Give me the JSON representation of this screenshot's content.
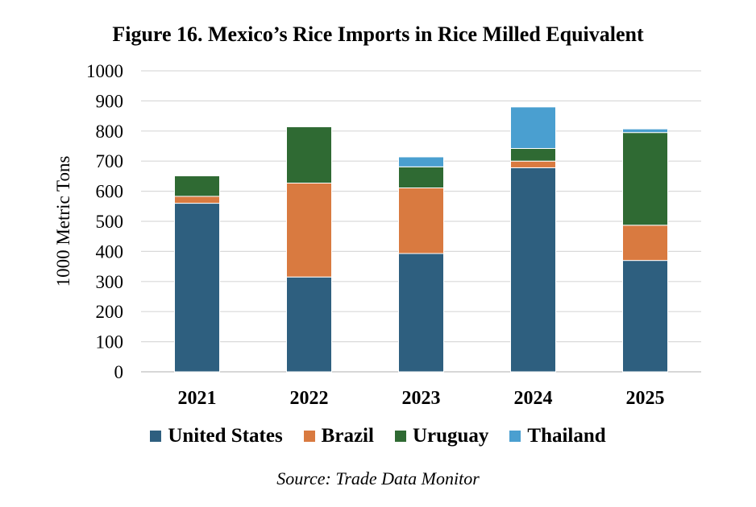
{
  "chart_data": {
    "type": "bar",
    "stacked": true,
    "title": "Figure 16. Mexico’s Rice Imports in Rice Milled Equivalent",
    "xlabel": "",
    "ylabel": "1000 Metric Tons",
    "ylim": [
      0,
      1000
    ],
    "yticks": [
      "0",
      "100",
      "200",
      "300",
      "400",
      "500",
      "600",
      "700",
      "800",
      "900",
      "1000"
    ],
    "grid": true,
    "legend_position": "bottom",
    "categories": [
      "2021",
      "2022",
      "2023",
      "2024",
      "2025"
    ],
    "series": [
      {
        "name": "United States",
        "color": "#2e5f7f",
        "values": [
          560,
          315,
          393,
          678,
          370
        ]
      },
      {
        "name": "Brazil",
        "color": "#d97a40",
        "values": [
          23,
          312,
          218,
          22,
          117
        ]
      },
      {
        "name": "Uruguay",
        "color": "#2f6a33",
        "values": [
          68,
          187,
          70,
          42,
          308
        ]
      },
      {
        "name": "Thailand",
        "color": "#4a9fd0",
        "values": [
          0,
          0,
          33,
          138,
          12
        ]
      }
    ],
    "source": "Source: Trade Data Monitor"
  }
}
